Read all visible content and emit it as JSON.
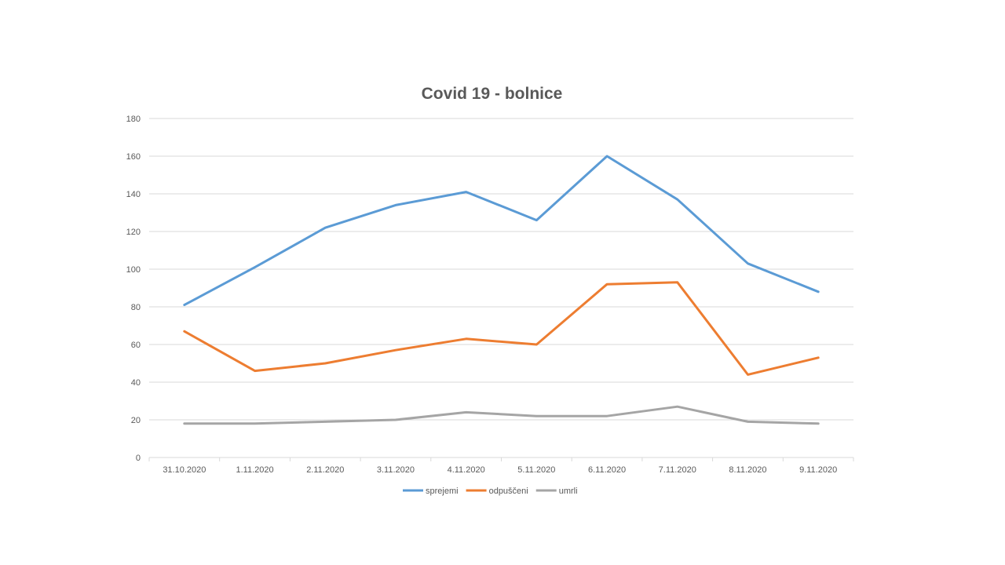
{
  "chart_data": {
    "type": "line",
    "title": "Covid 19 - bolnice",
    "xlabel": "",
    "ylabel": "",
    "categories": [
      "31.10.2020",
      "1.11.2020",
      "2.11.2020",
      "3.11.2020",
      "4.11.2020",
      "5.11.2020",
      "6.11.2020",
      "7.11.2020",
      "8.11.2020",
      "9.11.2020"
    ],
    "ylim": [
      0,
      180
    ],
    "yticks": [
      0,
      20,
      40,
      60,
      80,
      100,
      120,
      140,
      160,
      180
    ],
    "grid": true,
    "legend_position": "bottom",
    "series": [
      {
        "name": "sprejemi",
        "color": "#5B9BD5",
        "values": [
          81,
          101,
          122,
          134,
          141,
          126,
          160,
          137,
          103,
          88
        ]
      },
      {
        "name": "odpuščeni",
        "color": "#ED7D31",
        "values": [
          67,
          46,
          50,
          57,
          63,
          60,
          92,
          93,
          44,
          53
        ]
      },
      {
        "name": "umrli",
        "color": "#A5A5A5",
        "values": [
          18,
          18,
          19,
          20,
          24,
          22,
          22,
          27,
          19,
          18
        ]
      }
    ]
  }
}
